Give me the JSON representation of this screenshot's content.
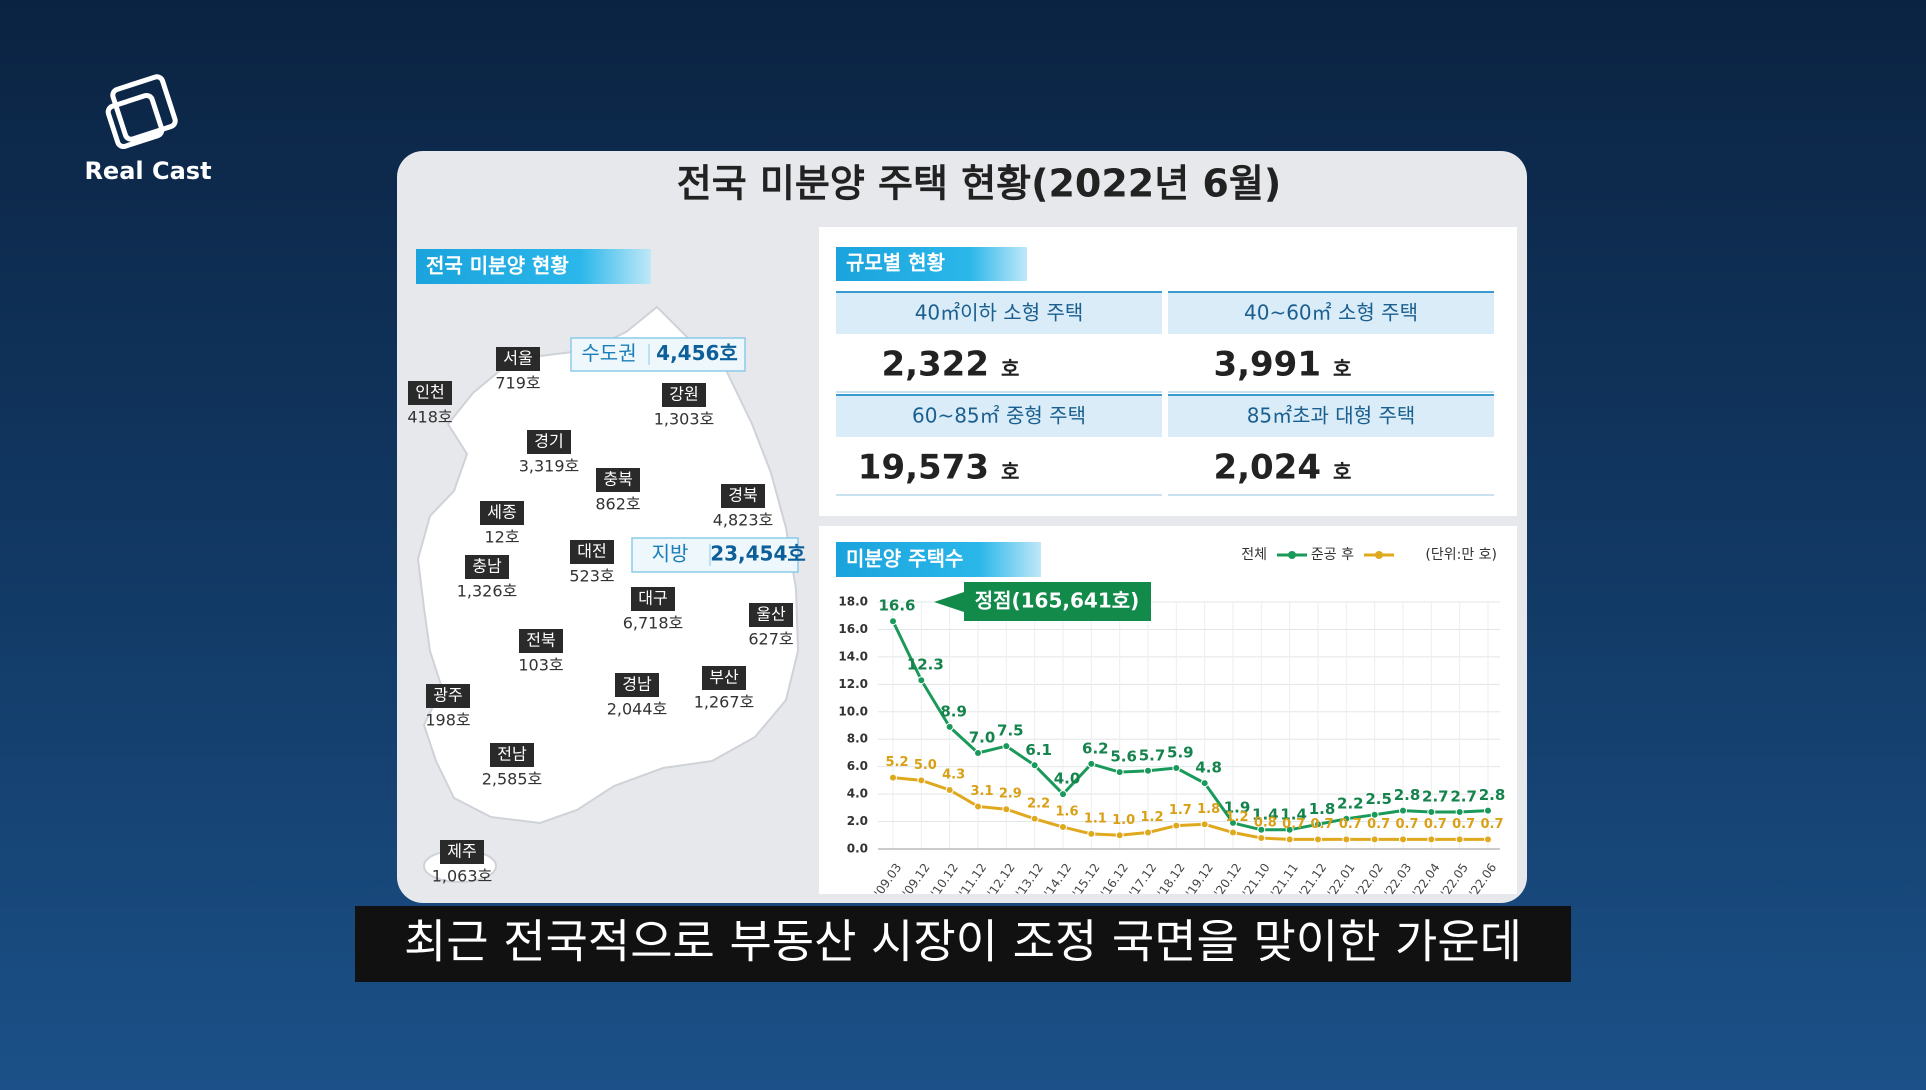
{
  "logo": {
    "text": "Real Cast"
  },
  "card": {
    "title": "전국 미분양 주택 현황(2022년 6월)"
  },
  "map_section": {
    "title": "전국 미분양 현황",
    "summary": [
      {
        "label": "수도권",
        "value": "4,456호"
      },
      {
        "label": "지방",
        "value": "23,454호"
      }
    ],
    "regions": [
      {
        "name": "서울",
        "count": "719호"
      },
      {
        "name": "인천",
        "count": "418호"
      },
      {
        "name": "경기",
        "count": "3,319호"
      },
      {
        "name": "강원",
        "count": "1,303호"
      },
      {
        "name": "충북",
        "count": "862호"
      },
      {
        "name": "세종",
        "count": "12호"
      },
      {
        "name": "충남",
        "count": "1,326호"
      },
      {
        "name": "대전",
        "count": "523호"
      },
      {
        "name": "경북",
        "count": "4,823호"
      },
      {
        "name": "대구",
        "count": "6,718호"
      },
      {
        "name": "전북",
        "count": "103호"
      },
      {
        "name": "울산",
        "count": "627호"
      },
      {
        "name": "광주",
        "count": "198호"
      },
      {
        "name": "경남",
        "count": "2,044호"
      },
      {
        "name": "부산",
        "count": "1,267호"
      },
      {
        "name": "전남",
        "count": "2,585호"
      },
      {
        "name": "제주",
        "count": "1,063호"
      }
    ]
  },
  "size_section": {
    "title": "규모별 현황",
    "items": [
      {
        "label": "40㎡이하 소형 주택",
        "value": "2,322",
        "unit": "호"
      },
      {
        "label": "40~60㎡ 소형 주택",
        "value": "3,991",
        "unit": "호"
      },
      {
        "label": "60~85㎡ 중형 주택",
        "value": "19,573",
        "unit": "호"
      },
      {
        "label": "85㎡초과 대형 주택",
        "value": "2,024",
        "unit": "호"
      }
    ]
  },
  "chart_data": {
    "type": "line",
    "title": "미분양 주택수",
    "unit_note": "(단위:만 호)",
    "annotation": "정점(165,641호)",
    "categories": [
      "'09.03",
      "'09.12",
      "'10.12",
      "'11.12",
      "'12.12",
      "'13.12",
      "'14.12",
      "'15.12",
      "'16.12",
      "'17.12",
      "'18.12",
      "'19.12",
      "'20.12",
      "'21.10",
      "'21.11",
      "'21.12",
      "'22.01",
      "'22.02",
      "'22.03",
      "'22.04",
      "'22.05",
      "'22.06"
    ],
    "series": [
      {
        "name": "전체",
        "color": "#1a9a5a",
        "values": [
          16.6,
          12.3,
          8.9,
          7.0,
          7.5,
          6.1,
          4.0,
          6.2,
          5.6,
          5.7,
          5.9,
          4.8,
          1.9,
          1.4,
          1.4,
          1.8,
          2.2,
          2.5,
          2.8,
          2.7,
          2.7,
          2.8
        ],
        "value_labels": [
          "16.6",
          "12.3",
          "8.9",
          "7.0",
          "7.5",
          "6.1",
          "4.0",
          "6.2",
          "5.6",
          "5.7",
          "5.9",
          "4.8",
          "1.9",
          "1.4",
          "1.4",
          "1.8",
          "2.2",
          "2.5",
          "2.8",
          "2.7",
          "2.7",
          "2.8"
        ]
      },
      {
        "name": "준공 후",
        "color": "#e0a81c",
        "values": [
          5.2,
          5.0,
          4.3,
          3.1,
          2.9,
          2.2,
          1.6,
          1.1,
          1.0,
          1.2,
          1.7,
          1.8,
          1.2,
          0.8,
          0.7,
          0.7,
          0.7,
          0.7,
          0.7,
          0.7,
          0.7,
          0.7
        ],
        "value_labels": [
          "5.2",
          "5.0",
          "4.3",
          "3.1",
          "2.9",
          "2.2",
          "1.6",
          "1.1",
          "1.0",
          "1.2",
          "1.7",
          "1.8",
          "1.2",
          "0.8",
          "0.7",
          "0.7",
          "0.7",
          "0.7",
          "0.7",
          "0.7",
          "0.7",
          "0.7"
        ]
      }
    ],
    "ylim": [
      0,
      18
    ],
    "yticks": [
      {
        "value": 0,
        "label": "0.0"
      },
      {
        "value": 2,
        "label": "2.0"
      },
      {
        "value": 4,
        "label": "4.0"
      },
      {
        "value": 6,
        "label": "6.0"
      },
      {
        "value": 8,
        "label": "8.0"
      },
      {
        "value": 10,
        "label": "10.0"
      },
      {
        "value": 12,
        "label": "12.0"
      },
      {
        "value": 14,
        "label": "14.0"
      },
      {
        "value": 16,
        "label": "16.0"
      },
      {
        "value": 18,
        "label": "18.0"
      }
    ],
    "grid": true
  },
  "subtitle": {
    "text": "최근 전국적으로 부동산 시장이 조정 국면을 맞이한 가운데"
  }
}
